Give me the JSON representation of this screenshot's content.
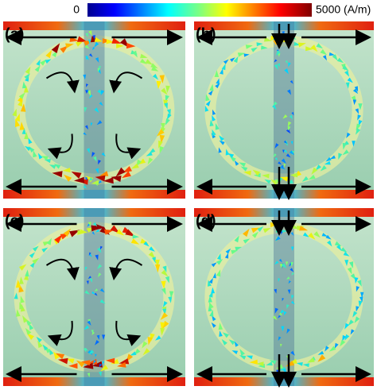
{
  "colorbar": {
    "min_label": "0",
    "max_label": "5000 (A/m)"
  },
  "panels": [
    {
      "label": "(a)"
    },
    {
      "label": "(b)"
    },
    {
      "label": "(c)"
    },
    {
      "label": "(d)"
    }
  ]
}
